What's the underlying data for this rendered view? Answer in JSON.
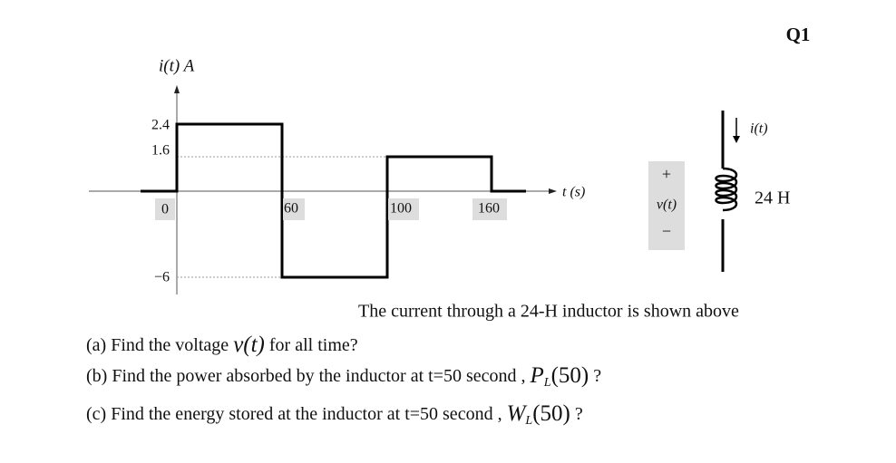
{
  "header": {
    "label": "Q1"
  },
  "graph": {
    "y_axis_label": "i(t) A",
    "x_axis_label": "t (s)",
    "yticks": [
      "2.4",
      "1.6",
      "0",
      "−6"
    ],
    "xticks": [
      "60",
      "100",
      "160"
    ]
  },
  "circuit": {
    "plus": "+",
    "voltage": "v(t)",
    "minus": "−",
    "current": "i(t)",
    "inductance": "24 H"
  },
  "caption": "The current through a 24-H inductor is shown above",
  "questions": [
    {
      "text": "(a) Find the voltage",
      "math": "v(t)",
      "end": "for all time?"
    },
    {
      "text": "(b) Find the power absorbed by the inductor at t=50 second ,",
      "math": "P",
      "sub": "L",
      "arg": "(50)",
      "end": "?"
    },
    {
      "text": "(c) Find the energy stored at  the inductor at t=50 second ,",
      "math": "W",
      "sub": "L",
      "arg": "(50)",
      "end": "?"
    }
  ]
}
